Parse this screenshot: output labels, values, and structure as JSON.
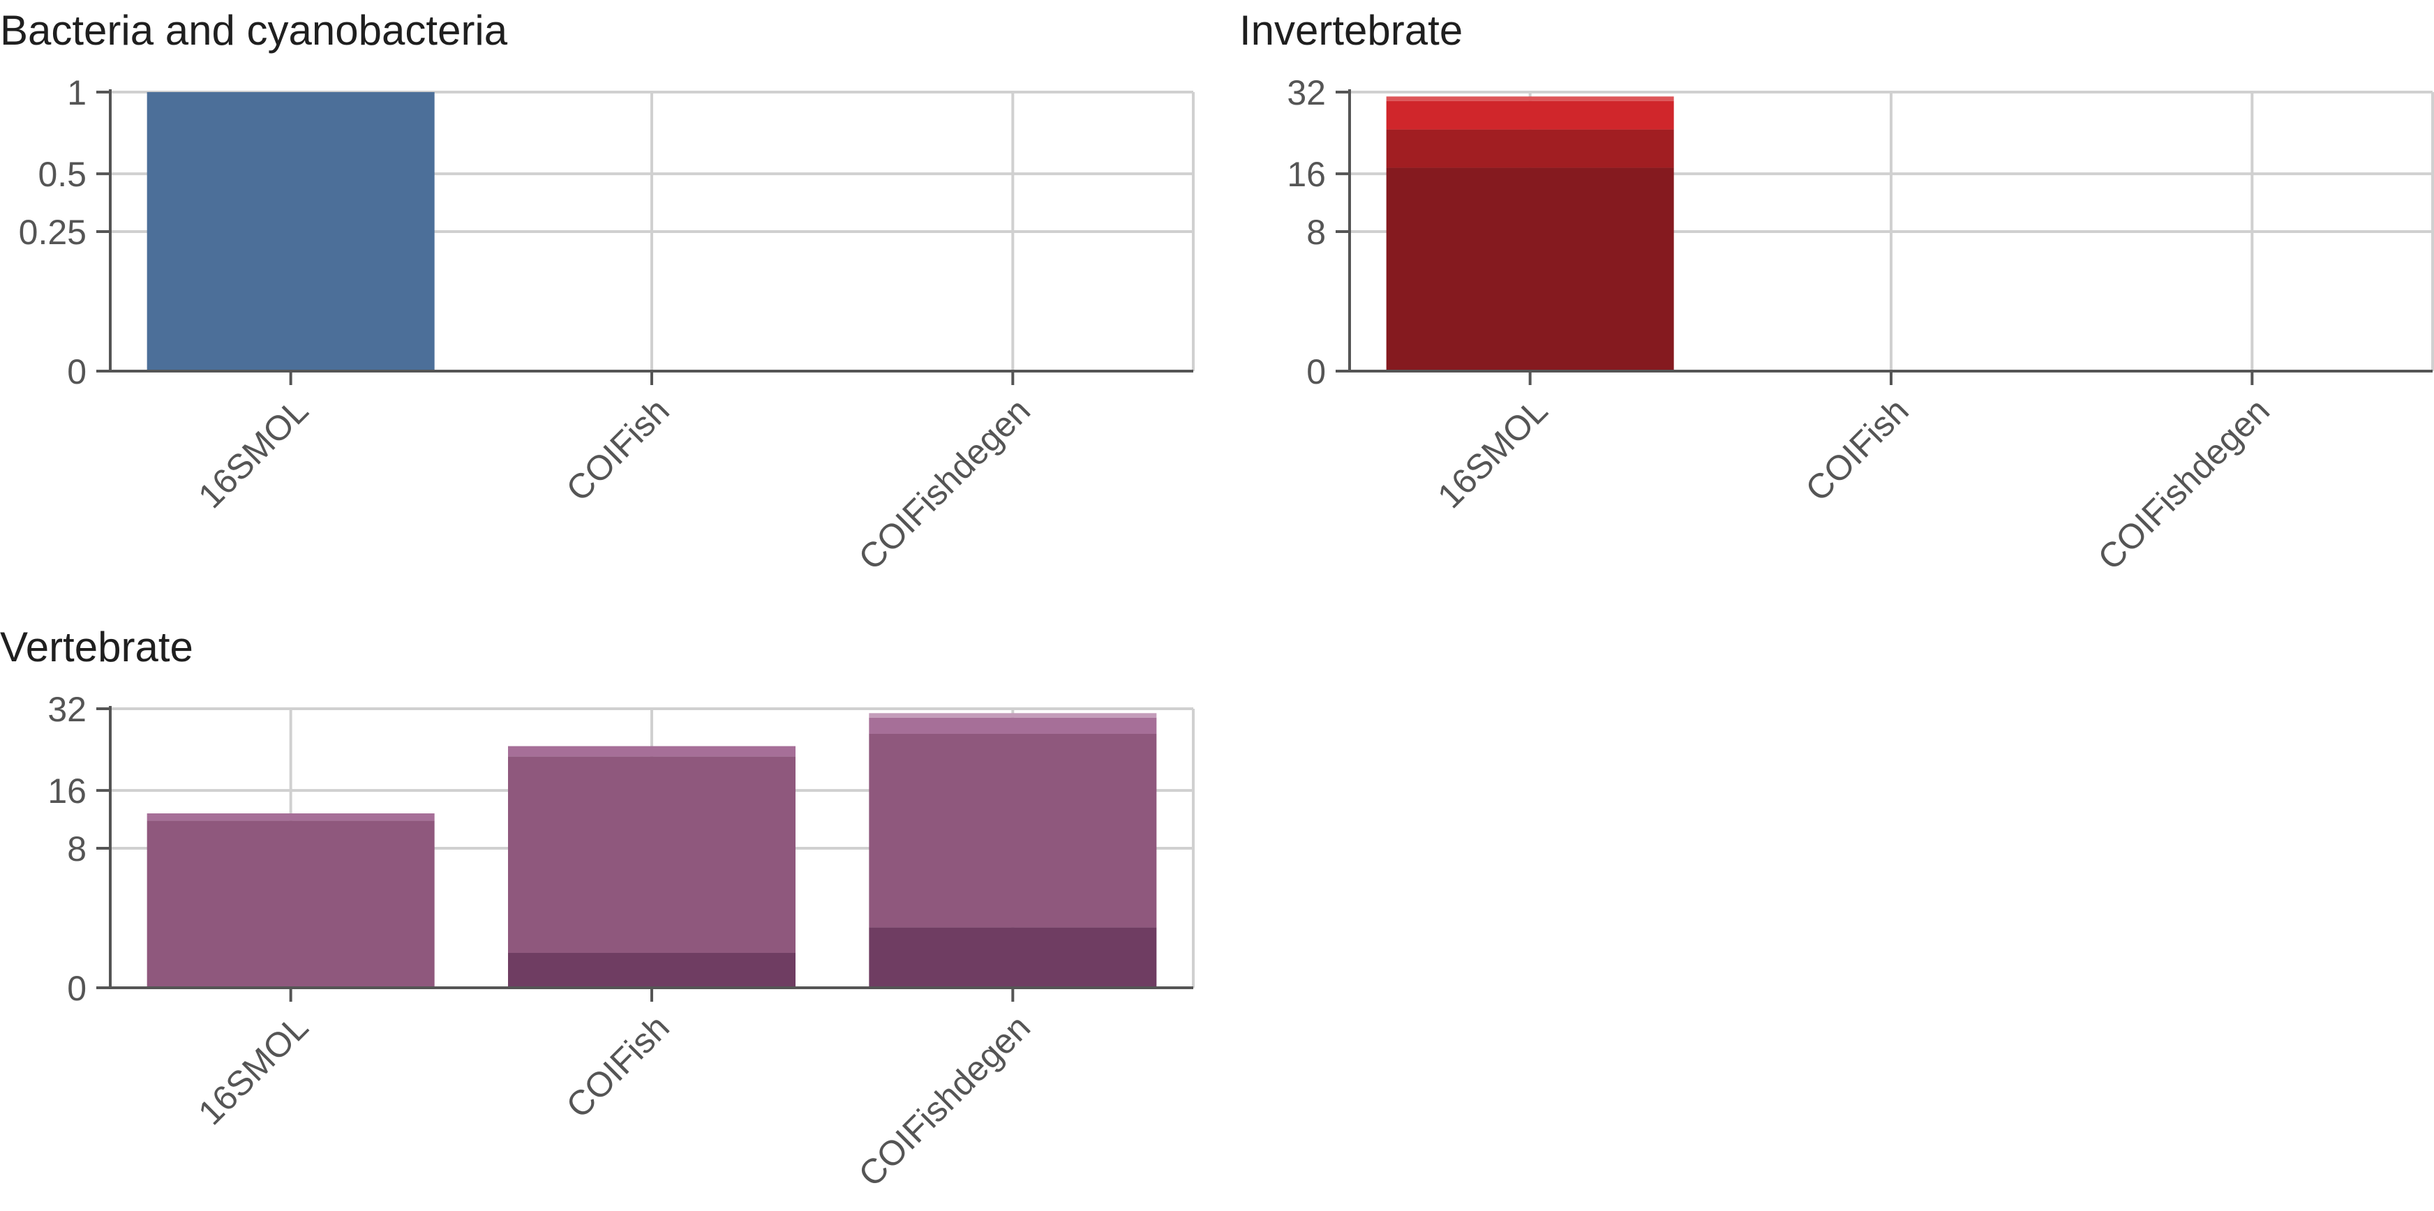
{
  "chart_data": [
    {
      "type": "bar",
      "stacked": true,
      "title": "Bacteria and cyanobacteria",
      "xlabel": "",
      "ylabel": "",
      "y_scale": "sqrt",
      "ylim": [
        0,
        1
      ],
      "yticks": [
        0,
        0.25,
        0.5,
        1
      ],
      "ytick_labels": [
        "0",
        "0.25",
        "0.5",
        "1"
      ],
      "grid": true,
      "categories": [
        "16SMOL",
        "COIFish",
        "COIFishdegen"
      ],
      "series": [
        {
          "color": "#4c6f99",
          "values": [
            1,
            0,
            0
          ]
        }
      ]
    },
    {
      "type": "bar",
      "stacked": true,
      "title": "Invertebrate",
      "xlabel": "",
      "ylabel": "",
      "y_scale": "sqrt",
      "ylim": [
        0,
        32
      ],
      "yticks": [
        0,
        8,
        16,
        32
      ],
      "ytick_labels": [
        "0",
        "8",
        "16",
        "32"
      ],
      "grid": true,
      "categories": [
        "16SMOL",
        "COIFish",
        "COIFishdegen"
      ],
      "series": [
        {
          "color": "#851a1f",
          "values": [
            17,
            0,
            0
          ]
        },
        {
          "color": "#a11e22",
          "values": [
            7,
            0,
            0
          ]
        },
        {
          "color": "#d0262b",
          "values": [
            6,
            0,
            0
          ]
        },
        {
          "color": "#dd5558",
          "values": [
            1,
            0,
            0
          ]
        }
      ]
    },
    {
      "type": "bar",
      "stacked": true,
      "title": "Vertebrate",
      "xlabel": "",
      "ylabel": "",
      "y_scale": "sqrt",
      "ylim": [
        0,
        32
      ],
      "yticks": [
        0,
        8,
        16,
        32
      ],
      "ytick_labels": [
        "0",
        "8",
        "16",
        "32"
      ],
      "grid": true,
      "categories": [
        "16SMOL",
        "COIFish",
        "COIFishdegen"
      ],
      "series": [
        {
          "color": "#6f3d62",
          "values": [
            0,
            0.5,
            1.5
          ]
        },
        {
          "color": "#8f587d",
          "values": [
            11.5,
            21.5,
            25
          ]
        },
        {
          "color": "#a66f98",
          "values": [
            1,
            2,
            3.5
          ]
        },
        {
          "color": "#c49dba",
          "values": [
            0,
            0,
            1
          ]
        }
      ]
    }
  ]
}
